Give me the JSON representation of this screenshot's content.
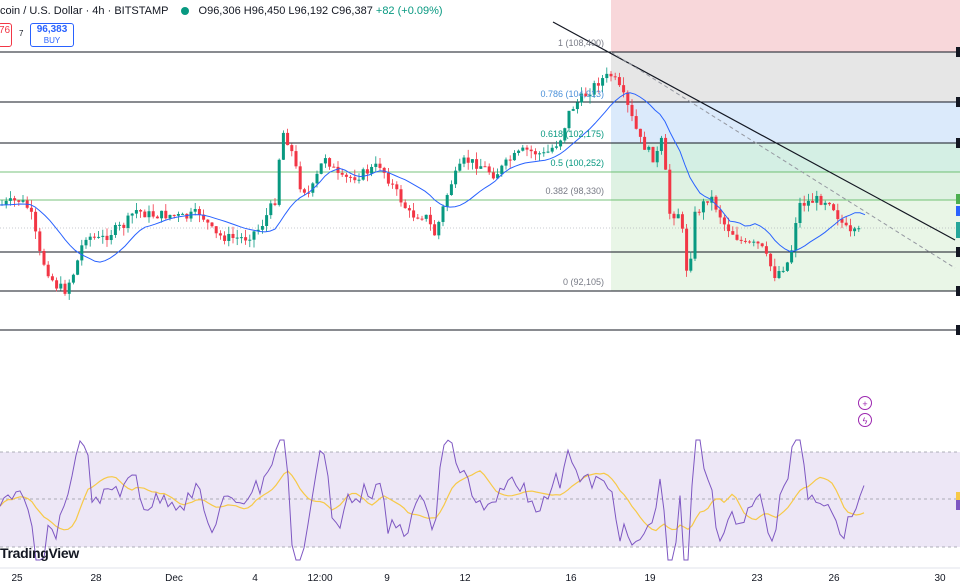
{
  "header": {
    "symbol": "coin / U.S. Dollar · 4h · BITSTAMP",
    "ohlc": "O96,306  H96,450  L96,192  C96,387",
    "change": "+82 (+0.09%)"
  },
  "trade": {
    "sell_price": "76",
    "spread": "7",
    "buy_price": "96,383",
    "buy_label": "BUY"
  },
  "fib": [
    {
      "label": "1 (108,400)",
      "color": "#787b86"
    },
    {
      "label": "0.786 (104,913)",
      "color": "#4a90d9"
    },
    {
      "label": "0.618 (102,175)",
      "color": "#089981"
    },
    {
      "label": "0.5 (100,252)",
      "color": "#089981"
    },
    {
      "label": "0.382 (98,330)",
      "color": "#787b86"
    },
    {
      "label": "0 (92,105)",
      "color": "#787b86"
    }
  ],
  "xaxis": [
    {
      "label": "25"
    },
    {
      "label": "28"
    },
    {
      "label": "Dec"
    },
    {
      "label": "4"
    },
    {
      "label": "12:00"
    },
    {
      "label": "9"
    },
    {
      "label": "12"
    },
    {
      "label": "16"
    },
    {
      "label": "19"
    },
    {
      "label": "23"
    },
    {
      "label": "26"
    },
    {
      "label": "30"
    }
  ],
  "brand": "TradingView",
  "colors": {
    "up": "#089981",
    "down": "#f23645",
    "ma": "#2962ff",
    "rsi": "#7e57c2",
    "rsi_ma": "#f7c948",
    "rsi_band": "#ede7f6"
  },
  "icons": [
    "compare-icon",
    "flash-icon"
  ]
}
